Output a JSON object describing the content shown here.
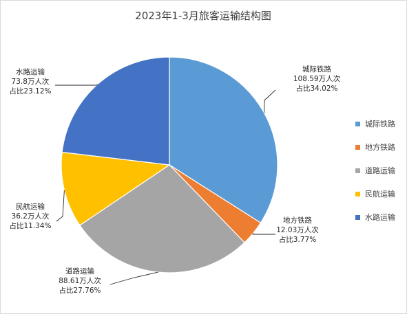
{
  "chart_data": {
    "type": "pie",
    "title": "2023年1-3月旅客运输结构图",
    "series": [
      {
        "name": "城际铁路",
        "value": 108.59,
        "value_label": "108.59万人次",
        "percent_label": "占比34.02%",
        "color": "#5B9BD5"
      },
      {
        "name": "地方铁路",
        "value": 12.03,
        "value_label": "12.03万人次",
        "percent_label": "占比3.77%",
        "color": "#ED7D31"
      },
      {
        "name": "道路运输",
        "value": 88.61,
        "value_label": "88.61万人次",
        "percent_label": "占比27.76%",
        "color": "#A5A5A5"
      },
      {
        "name": "民航运输",
        "value": 36.2,
        "value_label": "36.2万人次",
        "percent_label": "占比11.34%",
        "color": "#FFC000"
      },
      {
        "name": "水路运输",
        "value": 73.8,
        "value_label": "73.8万人次",
        "percent_label": "占比23.12%",
        "color": "#4472C4"
      }
    ],
    "start_angle": "12 o'clock",
    "direction": "clockwise",
    "legend_position": "right"
  }
}
